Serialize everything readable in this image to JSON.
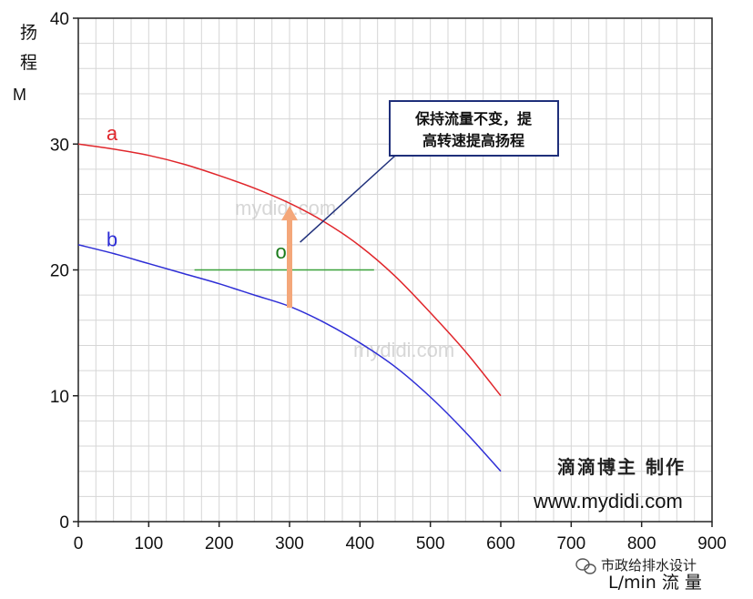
{
  "chart_data": {
    "type": "line",
    "ylabel_chars": [
      "扬",
      "程",
      "M"
    ],
    "xlabel": "L/min 流 量",
    "xlim": [
      0,
      900
    ],
    "ylim": [
      0,
      40
    ],
    "x_ticks": [
      0,
      100,
      200,
      300,
      400,
      500,
      600,
      700,
      800,
      900
    ],
    "y_ticks": [
      0,
      10,
      20,
      30,
      40
    ],
    "grid": true,
    "series": [
      {
        "name": "a",
        "color": "#e0262b",
        "x": [
          0,
          50,
          100,
          150,
          200,
          250,
          300,
          350,
          400,
          450,
          500,
          550,
          600
        ],
        "y": [
          30,
          29.6,
          29.1,
          28.4,
          27.5,
          26.5,
          25.3,
          23.8,
          21.9,
          19.5,
          16.6,
          13.5,
          10
        ]
      },
      {
        "name": "b",
        "color": "#2e2ed6",
        "x": [
          0,
          50,
          100,
          150,
          200,
          250,
          300,
          350,
          400,
          450,
          500,
          550,
          600
        ],
        "y": [
          22,
          21.3,
          20.5,
          19.7,
          18.9,
          18.0,
          17.1,
          15.8,
          14.2,
          12.3,
          9.9,
          7.1,
          4
        ]
      },
      {
        "name": "o",
        "color": "#3aa23a",
        "x": [
          165,
          420
        ],
        "y": [
          20,
          20
        ]
      }
    ],
    "arrow": {
      "x": 300,
      "y_from": 17,
      "y_to": 24.8,
      "color": "#f4a77a"
    },
    "callout": {
      "lines": [
        "保持流量不变，提",
        "高转速提高扬程"
      ],
      "pointer_to": {
        "x": 315,
        "y": 22.2
      }
    },
    "point_label": {
      "text": "o",
      "x": 280,
      "y": 21.5,
      "color": "#1a7a1a"
    }
  },
  "watermarks": [
    "mydidi.com",
    "mydidi.com"
  ],
  "credit": "滴滴博主 制作",
  "url": "www.mydidi.com",
  "footer": "市政给排水设计"
}
